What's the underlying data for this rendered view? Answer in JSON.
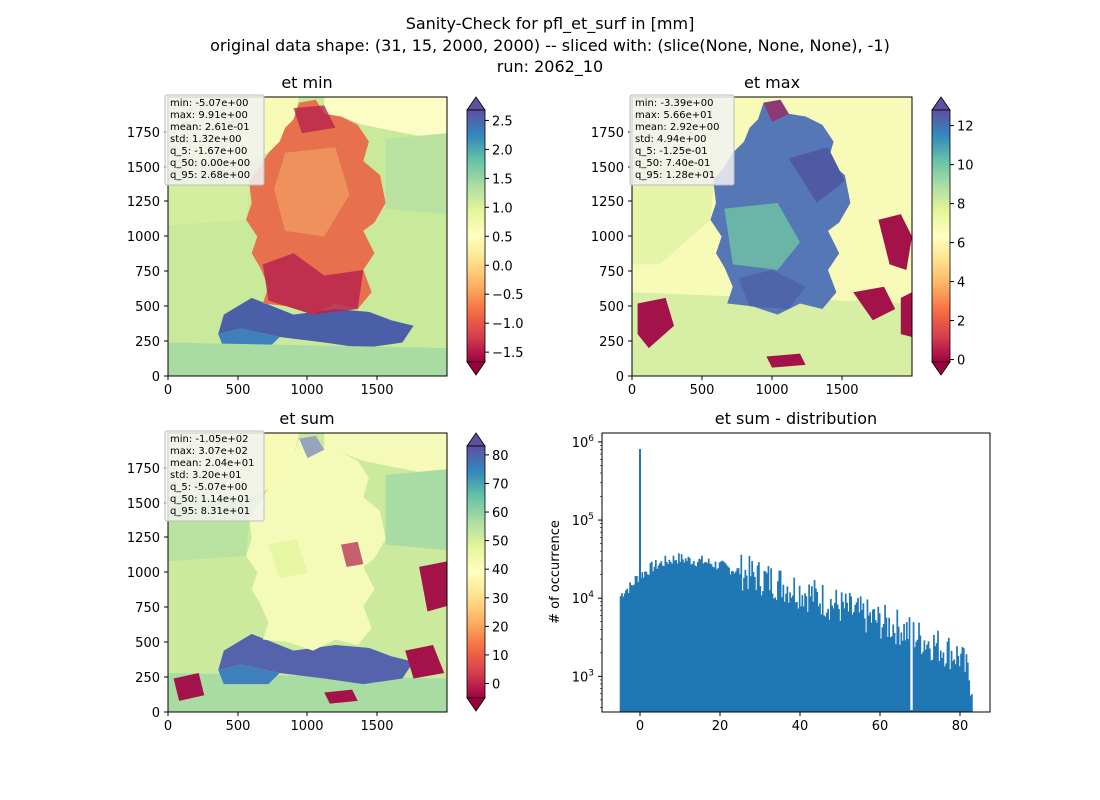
{
  "figure": {
    "title_lines": [
      "Sanity-Check for pfl_et_surf in [mm]",
      "original data shape: (31, 15, 2000, 2000) -- sliced with: (slice(None, None, None), -1)",
      "run: 2062_10"
    ]
  },
  "chart_data": [
    {
      "type": "heatmap",
      "title": "et min",
      "x_ticks": [
        "0",
        "500",
        "1000",
        "1500"
      ],
      "y_ticks": [
        "0",
        "250",
        "500",
        "750",
        "1000",
        "1250",
        "1500",
        "1750"
      ],
      "xlim": [
        0,
        2000
      ],
      "ylim": [
        0,
        2000
      ],
      "colormap": "Spectral",
      "colorbar": {
        "ticks": [
          "−1.5",
          "−1.0",
          "−0.5",
          "0.0",
          "0.5",
          "1.0",
          "1.5",
          "2.0",
          "2.5"
        ],
        "tick_values": [
          -1.5,
          -1.0,
          -0.5,
          0.0,
          0.5,
          1.0,
          1.5,
          2.0,
          2.5
        ],
        "vmin": -1.67,
        "vmax": 2.68,
        "extend": "both"
      },
      "stats": [
        "min: -5.07e+00",
        "max: 9.91e+00",
        "mean: 2.61e-01",
        "std: 1.32e+00",
        "q_5: -1.67e+00",
        "q_50: 0.00e+00",
        "q_95: 2.68e+00"
      ]
    },
    {
      "type": "heatmap",
      "title": "et max",
      "x_ticks": [
        "0",
        "500",
        "1000",
        "1500"
      ],
      "y_ticks": [
        "0",
        "250",
        "500",
        "750",
        "1000",
        "1250",
        "1500",
        "1750"
      ],
      "xlim": [
        0,
        2000
      ],
      "ylim": [
        0,
        2000
      ],
      "colormap": "Spectral",
      "colorbar": {
        "ticks": [
          "0",
          "2",
          "4",
          "6",
          "8",
          "10",
          "12"
        ],
        "tick_values": [
          0,
          2,
          4,
          6,
          8,
          10,
          12
        ],
        "vmin": -0.125,
        "vmax": 12.8,
        "extend": "both"
      },
      "stats": [
        "min: -3.39e+00",
        "max: 5.66e+01",
        "mean: 2.92e+00",
        "std: 4.94e+00",
        "q_5: -1.25e-01",
        "q_50: 7.40e-01",
        "q_95: 1.28e+01"
      ]
    },
    {
      "type": "heatmap",
      "title": "et sum",
      "x_ticks": [
        "0",
        "500",
        "1000",
        "1500"
      ],
      "y_ticks": [
        "0",
        "250",
        "500",
        "750",
        "1000",
        "1250",
        "1500",
        "1750"
      ],
      "xlim": [
        0,
        2000
      ],
      "ylim": [
        0,
        2000
      ],
      "colormap": "Spectral",
      "colorbar": {
        "ticks": [
          "0",
          "10",
          "20",
          "30",
          "40",
          "50",
          "60",
          "70",
          "80"
        ],
        "tick_values": [
          0,
          10,
          20,
          30,
          40,
          50,
          60,
          70,
          80
        ],
        "vmin": -5.07,
        "vmax": 83.1,
        "extend": "both"
      },
      "stats": [
        "min: -1.05e+02",
        "max: 3.07e+02",
        "mean: 2.04e+01",
        "std: 3.20e+01",
        "q_5: -5.07e+00",
        "q_50: 1.14e+01",
        "q_95: 8.31e+01"
      ]
    },
    {
      "type": "bar",
      "title": "et sum - distribution",
      "xlabel": "",
      "ylabel": "# of occurrence",
      "yscale": "log",
      "xlim": [
        -9.5,
        87.5
      ],
      "ylim": [
        350,
        1300000
      ],
      "x_ticks": [
        0,
        20,
        40,
        60,
        80
      ],
      "y_ticks": [
        {
          "value": 1000,
          "base": "10",
          "exp": "3"
        },
        {
          "value": 10000,
          "base": "10",
          "exp": "4"
        },
        {
          "value": 100000,
          "base": "10",
          "exp": "5"
        },
        {
          "value": 1000000,
          "base": "10",
          "exp": "6"
        }
      ],
      "color": "#1f77b4",
      "bin_range": [
        -5.07,
        83.1
      ],
      "profile": {
        "x": [
          -5.0,
          -4.0,
          -2.0,
          -1.0,
          1.0,
          3.0,
          6.0,
          9.0,
          12.0,
          16.0,
          20.0,
          25.0,
          30.0,
          35.0,
          40.0,
          45.0,
          50.0,
          55.0,
          60.0,
          65.0,
          70.0,
          75.0,
          80.0,
          83.0
        ],
        "y": [
          10500,
          12500,
          14500,
          18000,
          21000,
          25000,
          29000,
          32500,
          31000,
          29500,
          26000,
          22000,
          18500,
          15500,
          12500,
          10000,
          7800,
          6200,
          5000,
          4200,
          3100,
          2400,
          1800,
          800
        ]
      },
      "spike": {
        "x": 0.0,
        "y": 810000
      },
      "gap": {
        "x": 68.0,
        "y": 370
      }
    }
  ]
}
